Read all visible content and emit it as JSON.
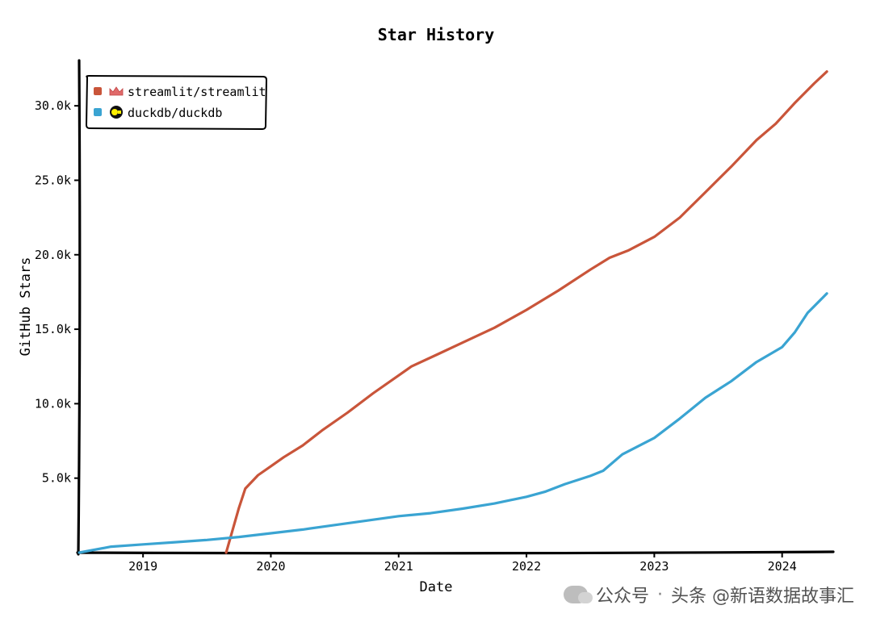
{
  "chart_data": {
    "type": "line",
    "title": "Star History",
    "xlabel": "Date",
    "ylabel": "GitHub Stars",
    "x_ticks": [
      "2019",
      "2020",
      "2021",
      "2022",
      "2023",
      "2024"
    ],
    "x_range": [
      2018.5,
      2024.4
    ],
    "y_ticks": [
      "5.0k",
      "10.0k",
      "15.0k",
      "20.0k",
      "25.0k",
      "30.0k"
    ],
    "ylim": [
      0,
      32500
    ],
    "legend_position": "top-left",
    "series": [
      {
        "name": "streamlit/streamlit",
        "color": "#c9553a",
        "icon": "crown-icon",
        "points": [
          [
            2019.65,
            0
          ],
          [
            2019.7,
            1500
          ],
          [
            2019.75,
            3000
          ],
          [
            2019.8,
            4300
          ],
          [
            2019.9,
            5200
          ],
          [
            2020.0,
            5800
          ],
          [
            2020.1,
            6400
          ],
          [
            2020.25,
            7200
          ],
          [
            2020.4,
            8200
          ],
          [
            2020.6,
            9400
          ],
          [
            2020.8,
            10700
          ],
          [
            2021.0,
            11900
          ],
          [
            2021.1,
            12500
          ],
          [
            2021.3,
            13300
          ],
          [
            2021.5,
            14100
          ],
          [
            2021.75,
            15100
          ],
          [
            2022.0,
            16300
          ],
          [
            2022.25,
            17600
          ],
          [
            2022.5,
            19000
          ],
          [
            2022.65,
            19800
          ],
          [
            2022.8,
            20300
          ],
          [
            2023.0,
            21200
          ],
          [
            2023.2,
            22500
          ],
          [
            2023.4,
            24200
          ],
          [
            2023.6,
            25900
          ],
          [
            2023.8,
            27700
          ],
          [
            2023.95,
            28800
          ],
          [
            2024.1,
            30200
          ],
          [
            2024.25,
            31500
          ],
          [
            2024.35,
            32300
          ]
        ]
      },
      {
        "name": "duckdb/duckdb",
        "color": "#3aa4d2",
        "icon": "duck-icon",
        "points": [
          [
            2018.5,
            0
          ],
          [
            2018.75,
            400
          ],
          [
            2019.0,
            550
          ],
          [
            2019.25,
            700
          ],
          [
            2019.5,
            850
          ],
          [
            2019.75,
            1050
          ],
          [
            2020.0,
            1300
          ],
          [
            2020.25,
            1550
          ],
          [
            2020.5,
            1850
          ],
          [
            2020.75,
            2150
          ],
          [
            2021.0,
            2450
          ],
          [
            2021.25,
            2650
          ],
          [
            2021.5,
            2950
          ],
          [
            2021.75,
            3300
          ],
          [
            2022.0,
            3750
          ],
          [
            2022.15,
            4100
          ],
          [
            2022.3,
            4600
          ],
          [
            2022.5,
            5150
          ],
          [
            2022.6,
            5500
          ],
          [
            2022.75,
            6600
          ],
          [
            2023.0,
            7700
          ],
          [
            2023.2,
            9000
          ],
          [
            2023.4,
            10400
          ],
          [
            2023.6,
            11500
          ],
          [
            2023.8,
            12800
          ],
          [
            2024.0,
            13800
          ],
          [
            2024.1,
            14800
          ],
          [
            2024.2,
            16100
          ],
          [
            2024.35,
            17400
          ]
        ]
      }
    ]
  },
  "watermark": {
    "platform": "公众号",
    "separator": "·",
    "account": "头条 @新语数据故事汇"
  }
}
